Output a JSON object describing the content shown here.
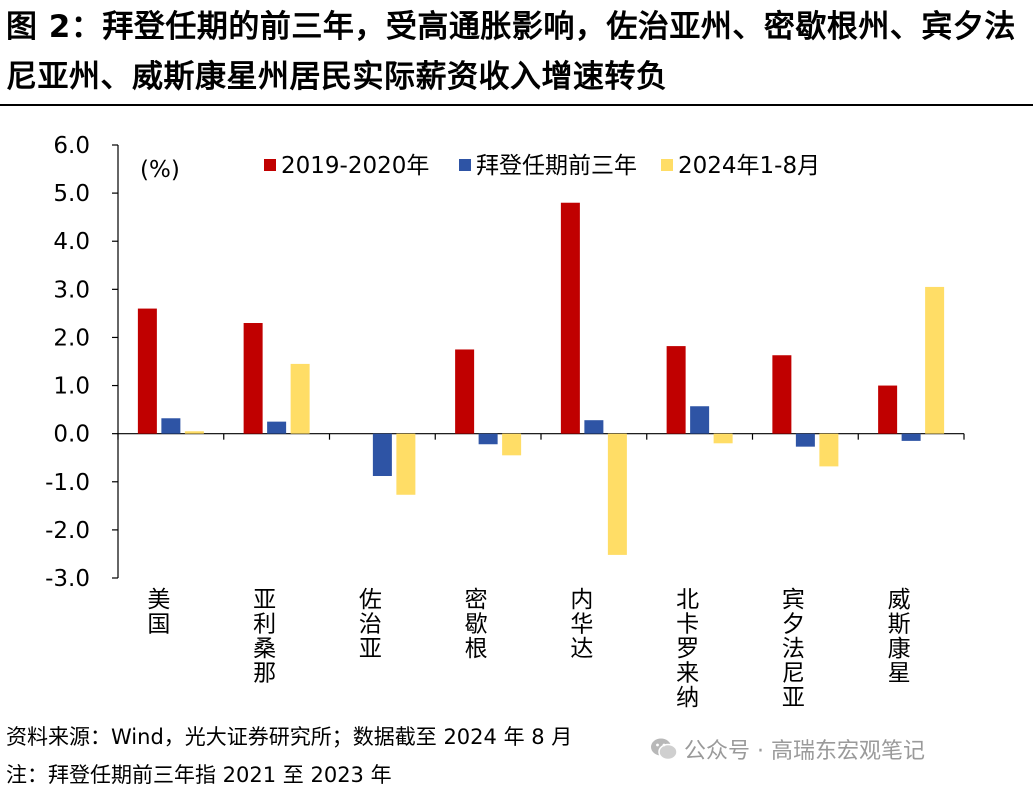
{
  "title": "图 2：拜登任期的前三年，受高通胀影响，佐治亚州、密歇根州、宾夕法尼亚州、威斯康星州居民实际薪资收入增速转负",
  "footer": {
    "source": "资料来源：Wind，光大证券研究所；数据截至 2024 年 8 月",
    "note": "注：拜登任期前三年指 2021 至 2023 年"
  },
  "watermark": {
    "icon": "wechat-icon",
    "text": "公众号 · 高瑞东宏观笔记"
  },
  "chart_data": {
    "type": "bar",
    "unit_label": "(%)",
    "categories": [
      "美国",
      "亚利桑那",
      "佐治亚",
      "密歇根",
      "内华达",
      "北卡罗来纳",
      "宾夕法尼亚",
      "威斯康星"
    ],
    "series": [
      {
        "name": "2019-2020年",
        "color": "#C00000",
        "values": [
          2.6,
          2.3,
          0.0,
          1.75,
          4.8,
          1.82,
          1.63,
          1.0
        ]
      },
      {
        "name": "拜登任期前三年",
        "color": "#2E54A5",
        "values": [
          0.32,
          0.25,
          -0.88,
          -0.22,
          0.28,
          0.57,
          -0.27,
          -0.15
        ]
      },
      {
        "name": "2024年1-8月",
        "color": "#FFDD66",
        "values": [
          0.05,
          1.45,
          -1.27,
          -0.45,
          -2.52,
          -0.2,
          -0.68,
          3.05
        ]
      }
    ],
    "yticks": [
      "6.0",
      "5.0",
      "4.0",
      "3.0",
      "2.0",
      "1.0",
      "0.0",
      "-1.0",
      "-2.0",
      "-3.0"
    ],
    "ylim": [
      -3,
      6
    ],
    "grid": false,
    "legend_position": "top"
  }
}
